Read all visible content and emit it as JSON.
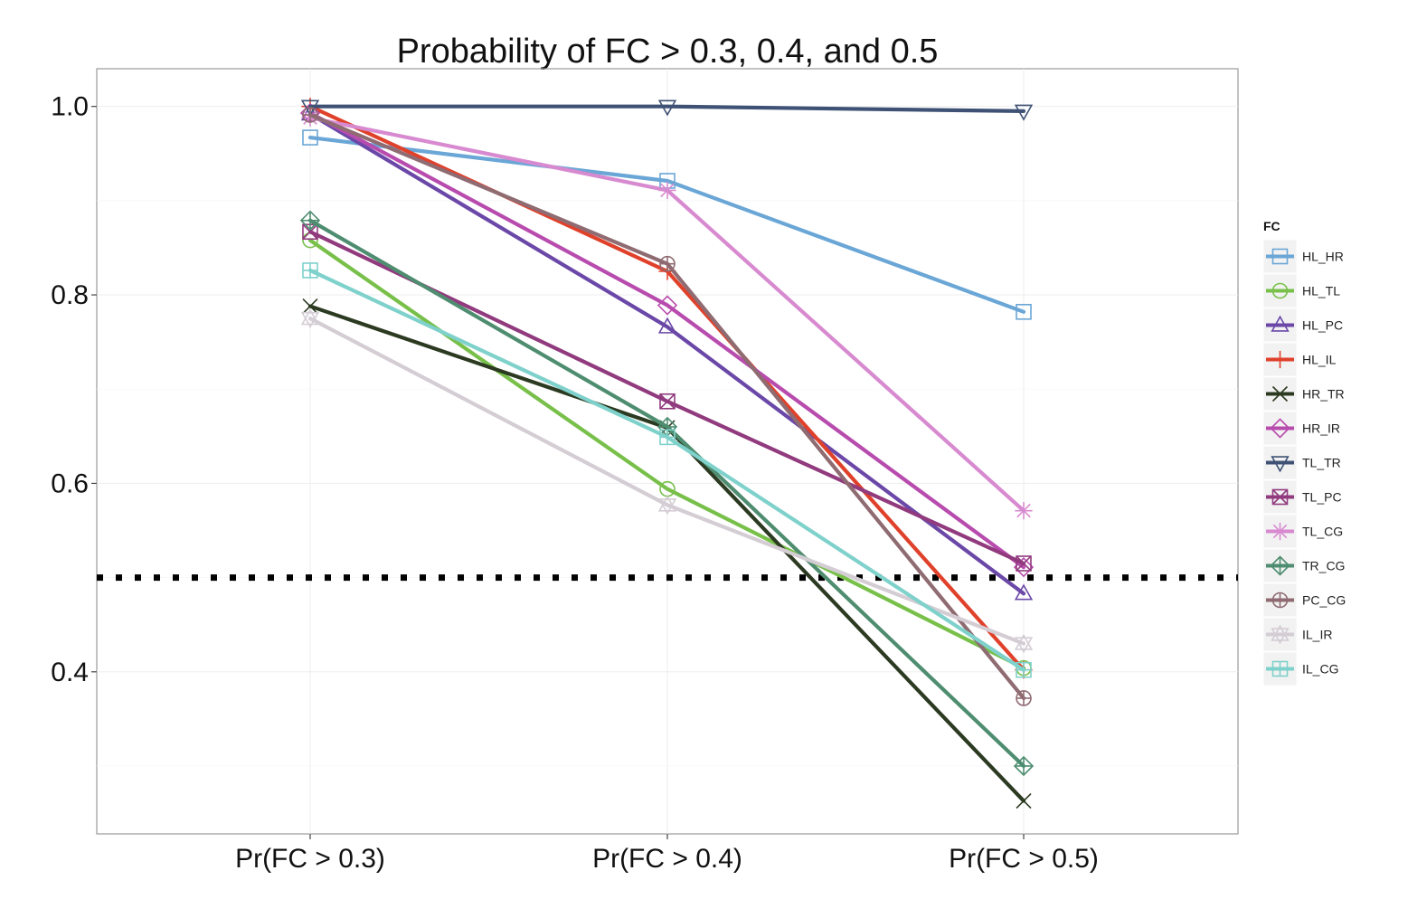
{
  "chart_data": {
    "type": "line",
    "title": "Probability of FC > 0.3, 0.4, and 0.5",
    "xlabel": "",
    "ylabel": "",
    "categories": [
      "Pr(FC > 0.3)",
      "Pr(FC > 0.4)",
      "Pr(FC > 0.5)"
    ],
    "ylim": [
      0.228,
      1.04
    ],
    "yticks": [
      0.4,
      0.6,
      0.8,
      1.0
    ],
    "ytick_labels": [
      "0.4",
      "0.6",
      "0.8",
      "1.0"
    ],
    "grid": true,
    "reference_line": {
      "y": 0.5,
      "style": "dotted",
      "color": "#000000"
    },
    "legend": {
      "title": "FC",
      "position": "right"
    },
    "series": [
      {
        "name": "HL_HR",
        "color": "#6aa6d6",
        "marker": "square",
        "values": [
          0.967,
          0.921,
          0.782
        ]
      },
      {
        "name": "HL_TL",
        "color": "#78c04a",
        "marker": "circle",
        "values": [
          0.858,
          0.594,
          0.404
        ]
      },
      {
        "name": "HL_PC",
        "color": "#6b48a8",
        "marker": "triangle-up",
        "values": [
          0.992,
          0.766,
          0.483
        ]
      },
      {
        "name": "HL_IL",
        "color": "#e0412b",
        "marker": "plus",
        "values": [
          1.0,
          0.825,
          0.402
        ]
      },
      {
        "name": "HR_TR",
        "color": "#2c3a22",
        "marker": "cross",
        "values": [
          0.788,
          0.659,
          0.263
        ]
      },
      {
        "name": "HR_IR",
        "color": "#b84cae",
        "marker": "diamond",
        "values": [
          0.993,
          0.789,
          0.511
        ]
      },
      {
        "name": "TL_TR",
        "color": "#3f5276",
        "marker": "triangle-down",
        "values": [
          1.0,
          1.0,
          0.995
        ]
      },
      {
        "name": "TL_PC",
        "color": "#913a7e",
        "marker": "square-cross",
        "values": [
          0.867,
          0.687,
          0.515
        ]
      },
      {
        "name": "TL_CG",
        "color": "#d88ad0",
        "marker": "asterisk",
        "values": [
          0.988,
          0.911,
          0.571
        ]
      },
      {
        "name": "TR_CG",
        "color": "#4e8d70",
        "marker": "diamond-plus",
        "values": [
          0.879,
          0.66,
          0.3
        ]
      },
      {
        "name": "PC_CG",
        "color": "#8f6b72",
        "marker": "circle-plus",
        "values": [
          0.991,
          0.833,
          0.372
        ]
      },
      {
        "name": "IL_IR",
        "color": "#d4cdd4",
        "marker": "star-triangle",
        "values": [
          0.775,
          0.577,
          0.43
        ]
      },
      {
        "name": "IL_CG",
        "color": "#7fd1cb",
        "marker": "square-plus",
        "values": [
          0.826,
          0.649,
          0.402
        ]
      }
    ]
  }
}
